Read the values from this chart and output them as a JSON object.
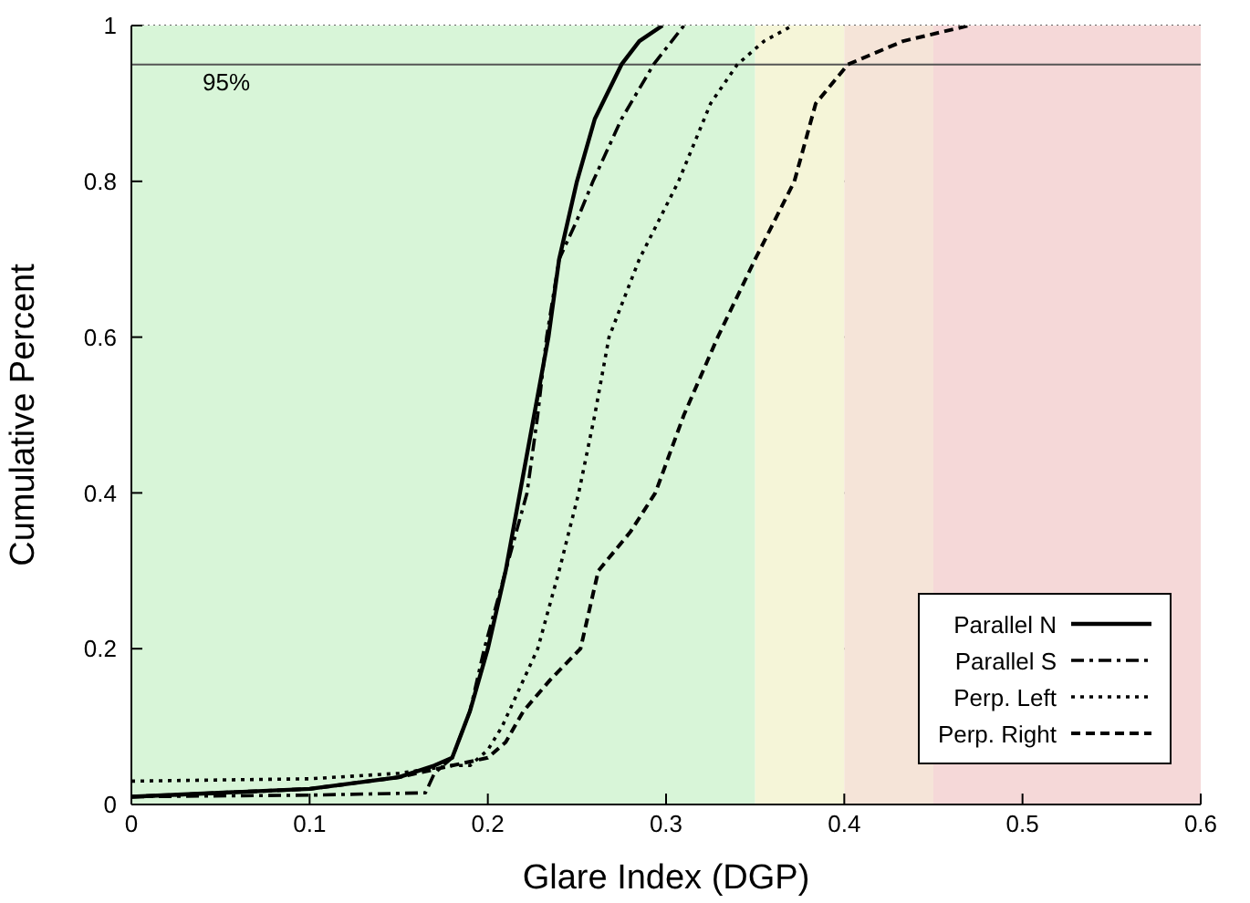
{
  "chart_data": {
    "type": "line",
    "xlabel": "Glare Index (DGP)",
    "ylabel": "Cumulative Percent",
    "xlim": [
      0,
      0.6
    ],
    "xticks": [
      0,
      0.1,
      0.2,
      0.3,
      0.4,
      0.5,
      0.6
    ],
    "ylim": [
      0,
      1
    ],
    "yticks": [
      0,
      0.2,
      0.4,
      0.6,
      0.8,
      1
    ],
    "grid": "y",
    "legend": "bottom right",
    "bands": [
      {
        "axis": "x",
        "from": 0,
        "to": 0.35,
        "color": "#d8f5d8"
      },
      {
        "axis": "x",
        "from": 0.35,
        "to": 0.4,
        "color": "#f5f5d8"
      },
      {
        "axis": "x",
        "from": 0.4,
        "to": 0.45,
        "color": "#f5e4d8"
      },
      {
        "axis": "x",
        "from": 0.45,
        "to": 0.6,
        "color": "#f5d8d8"
      }
    ],
    "ref_lines": [
      {
        "axis": "y",
        "value": 0.95,
        "label": "95%",
        "color": "#555555"
      }
    ],
    "series": [
      {
        "name": "Parallel N",
        "color": "#000000",
        "line_style": "solid",
        "x": [
          0,
          0.1,
          0.15,
          0.17,
          0.18,
          0.19,
          0.2,
          0.21,
          0.218,
          0.226,
          0.234,
          0.24,
          0.25,
          0.26,
          0.275,
          0.285,
          0.298
        ],
        "values": [
          0.01,
          0.02,
          0.035,
          0.05,
          0.06,
          0.12,
          0.2,
          0.3,
          0.4,
          0.5,
          0.6,
          0.7,
          0.8,
          0.88,
          0.95,
          0.98,
          1
        ]
      },
      {
        "name": "Parallel S",
        "color": "#000000",
        "line_style": "dashdot",
        "x": [
          0,
          0.1,
          0.165,
          0.17,
          0.18,
          0.19,
          0.198,
          0.21,
          0.222,
          0.228,
          0.233,
          0.24,
          0.25,
          0.259,
          0.275,
          0.293,
          0.31
        ],
        "values": [
          0.01,
          0.012,
          0.015,
          0.04,
          0.06,
          0.12,
          0.2,
          0.3,
          0.4,
          0.5,
          0.6,
          0.7,
          0.75,
          0.8,
          0.88,
          0.95,
          1
        ]
      },
      {
        "name": "Perp. Left",
        "color": "#000000",
        "line_style": "dotted",
        "x": [
          0,
          0.1,
          0.15,
          0.18,
          0.19,
          0.2,
          0.208,
          0.218,
          0.228,
          0.24,
          0.251,
          0.26,
          0.268,
          0.285,
          0.307,
          0.325,
          0.34,
          0.355,
          0.371
        ],
        "values": [
          0.03,
          0.033,
          0.04,
          0.05,
          0.05,
          0.07,
          0.1,
          0.15,
          0.2,
          0.3,
          0.4,
          0.5,
          0.6,
          0.7,
          0.8,
          0.9,
          0.95,
          0.98,
          1
        ]
      },
      {
        "name": "Perp. Right",
        "color": "#000000",
        "line_style": "dashed",
        "x": [
          0,
          0.1,
          0.15,
          0.18,
          0.2,
          0.21,
          0.22,
          0.235,
          0.252,
          0.262,
          0.28,
          0.294,
          0.31,
          0.329,
          0.35,
          0.372,
          0.384,
          0.402,
          0.433,
          0.47
        ],
        "values": [
          0.01,
          0.02,
          0.035,
          0.05,
          0.06,
          0.08,
          0.12,
          0.16,
          0.2,
          0.3,
          0.35,
          0.4,
          0.5,
          0.6,
          0.7,
          0.8,
          0.9,
          0.95,
          0.98,
          1
        ]
      }
    ]
  }
}
